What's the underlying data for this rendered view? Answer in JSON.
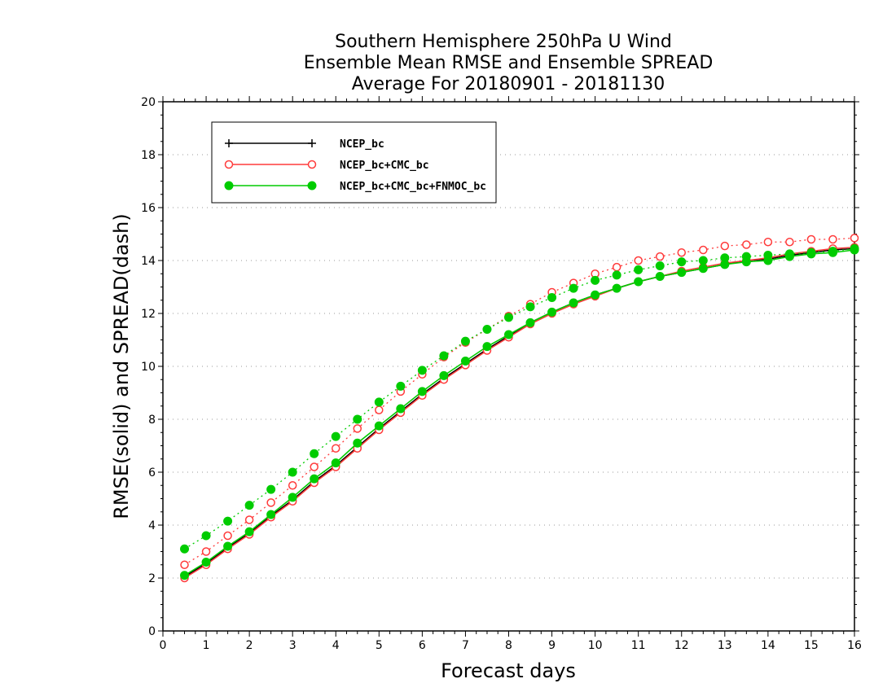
{
  "chart_data": {
    "type": "line",
    "title": [
      "Southern Hemisphere 250hPa U Wind",
      "Ensemble Mean RMSE and Ensemble SPREAD",
      "Average For 20180901 - 20181130"
    ],
    "xlabel": "Forecast days",
    "ylabel": "RMSE(solid) and SPREAD(dash)",
    "xlim": [
      0,
      16
    ],
    "ylim": [
      0,
      20
    ],
    "xticks": [
      "0",
      "1",
      "2",
      "3",
      "4",
      "5",
      "6",
      "7",
      "8",
      "9",
      "10",
      "11",
      "12",
      "13",
      "14",
      "15",
      "16"
    ],
    "yticks": [
      "0",
      "2",
      "4",
      "6",
      "8",
      "10",
      "12",
      "14",
      "16",
      "18",
      "20"
    ],
    "grid": "horizontal dotted",
    "legend_position": "top-left",
    "x": [
      0.5,
      1,
      1.5,
      2,
      2.5,
      3,
      3.5,
      4,
      4.5,
      5,
      5.5,
      6,
      6.5,
      7,
      7.5,
      8,
      8.5,
      9,
      9.5,
      10,
      10.5,
      11,
      11.5,
      12,
      12.5,
      13,
      13.5,
      14,
      14.5,
      15,
      15.5,
      16
    ],
    "series": [
      {
        "name": "NCEP_bc",
        "color": "#000000",
        "marker": "plus",
        "rmse": [
          2.05,
          2.55,
          3.15,
          3.7,
          4.35,
          4.95,
          5.65,
          6.25,
          6.95,
          7.65,
          8.3,
          8.95,
          9.55,
          10.1,
          10.65,
          11.15,
          11.65,
          12.05,
          12.4,
          12.7,
          12.95,
          13.2,
          13.4,
          13.55,
          13.7,
          13.85,
          14.0,
          14.05,
          14.2,
          14.3,
          14.4,
          14.45
        ],
        "spread": []
      },
      {
        "name": "NCEP_bc+CMC_bc",
        "color": "#ff3b3b",
        "marker": "open-circle",
        "rmse": [
          2.0,
          2.5,
          3.1,
          3.65,
          4.3,
          4.9,
          5.6,
          6.2,
          6.9,
          7.6,
          8.25,
          8.9,
          9.5,
          10.05,
          10.6,
          11.1,
          11.6,
          12.0,
          12.35,
          12.65,
          12.95,
          13.2,
          13.4,
          13.6,
          13.75,
          13.9,
          14.0,
          14.1,
          14.25,
          14.35,
          14.45,
          14.5
        ],
        "spread": [
          2.5,
          3.0,
          3.6,
          4.2,
          4.85,
          5.5,
          6.2,
          6.9,
          7.65,
          8.35,
          9.05,
          9.7,
          10.35,
          10.9,
          11.4,
          11.9,
          12.35,
          12.8,
          13.15,
          13.5,
          13.75,
          14.0,
          14.15,
          14.3,
          14.4,
          14.55,
          14.6,
          14.7,
          14.7,
          14.8,
          14.8,
          14.85
        ]
      },
      {
        "name": "NCEP_bc+CMC_bc+FNMOC_bc",
        "color": "#00cc00",
        "marker": "filled-circle",
        "rmse": [
          2.1,
          2.6,
          3.2,
          3.75,
          4.4,
          5.05,
          5.75,
          6.35,
          7.1,
          7.75,
          8.4,
          9.05,
          9.65,
          10.2,
          10.75,
          11.2,
          11.65,
          12.05,
          12.4,
          12.7,
          12.95,
          13.2,
          13.4,
          13.55,
          13.7,
          13.85,
          13.95,
          14.0,
          14.15,
          14.25,
          14.3,
          14.4
        ],
        "spread": [
          3.1,
          3.6,
          4.15,
          4.75,
          5.35,
          6.0,
          6.7,
          7.35,
          8.0,
          8.65,
          9.25,
          9.85,
          10.4,
          10.95,
          11.4,
          11.85,
          12.25,
          12.6,
          12.95,
          13.25,
          13.45,
          13.65,
          13.8,
          13.95,
          14.0,
          14.1,
          14.15,
          14.2,
          14.25,
          14.3,
          14.35,
          14.45
        ]
      }
    ]
  }
}
